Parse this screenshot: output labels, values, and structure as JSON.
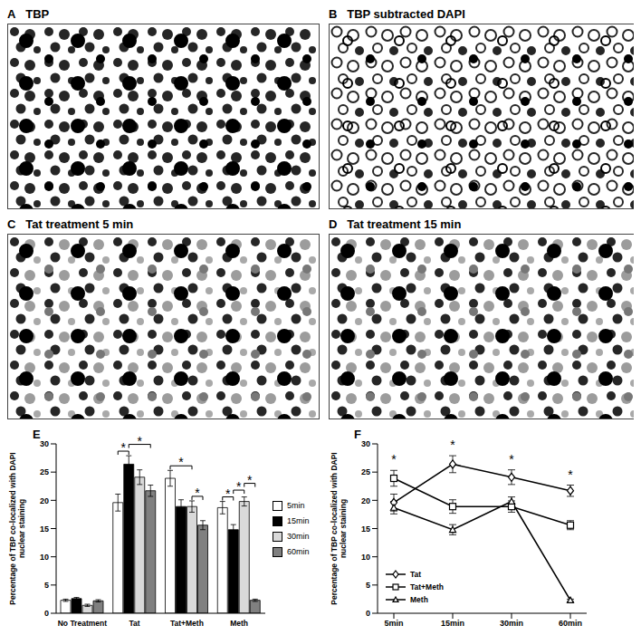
{
  "image_panels": [
    {
      "label": "A",
      "title": "TBP"
    },
    {
      "label": "B",
      "title": "TBP subtracted DAPI"
    },
    {
      "label": "C",
      "title": "Tat treatment 5 min"
    },
    {
      "label": "D",
      "title": "Tat treatment 15 min"
    }
  ],
  "chart_data": [
    {
      "type": "bar",
      "label": "E",
      "y_label": "Percentage of TBP co-localized with DAPI nuclear staining",
      "categories": [
        "No Treatment",
        "Tat",
        "Tat+Meth",
        "Meth"
      ],
      "series": [
        {
          "name": "5min",
          "color": "#ffffff",
          "values": [
            2.3,
            19.6,
            23.9,
            18.7
          ],
          "errors": [
            0.2,
            1.5,
            1.4,
            1.1
          ]
        },
        {
          "name": "15min",
          "color": "#000000",
          "values": [
            2.6,
            26.4,
            18.9,
            14.8
          ],
          "errors": [
            0.2,
            1.5,
            1.2,
            0.9
          ]
        },
        {
          "name": "30min",
          "color": "#d9d9d9",
          "values": [
            1.4,
            24.1,
            18.9,
            19.8
          ],
          "errors": [
            0.2,
            1.3,
            1.0,
            0.8
          ]
        },
        {
          "name": "60min",
          "color": "#808080",
          "values": [
            2.2,
            21.7,
            15.6,
            2.3
          ],
          "errors": [
            0.2,
            1.0,
            0.8,
            0.2
          ]
        }
      ],
      "ylim": [
        0,
        30
      ],
      "yticks": [
        0,
        5,
        10,
        15,
        20,
        25,
        30
      ],
      "grid": false,
      "legend": "right",
      "significance": [
        {
          "category": "Tat",
          "from": "5min",
          "to": "15min",
          "text": "*"
        },
        {
          "category": "Tat",
          "from": "15min",
          "to": "60min",
          "text": "*"
        },
        {
          "category": "Tat+Meth",
          "from": "30min",
          "to": "60min",
          "text": "*"
        },
        {
          "category": "Tat+Meth",
          "from": "5min",
          "to": "30min",
          "text": "*"
        },
        {
          "category": "Meth",
          "from": "5min",
          "to": "15min",
          "text": "*"
        },
        {
          "category": "Meth",
          "from": "15min",
          "to": "30min",
          "text": "*"
        },
        {
          "category": "Meth",
          "from": "30min",
          "to": "60min",
          "text": "*"
        }
      ]
    },
    {
      "type": "line",
      "label": "F",
      "y_label": "Percentage of TBP co-localized with DAPI nuclear staining",
      "categories": [
        "5min",
        "15min",
        "30min",
        "60min"
      ],
      "series": [
        {
          "name": "Tat",
          "color": "#000000",
          "marker": "diamond",
          "values": [
            19.6,
            26.4,
            24.1,
            21.7
          ],
          "errors": [
            1.5,
            1.5,
            1.3,
            1.0
          ]
        },
        {
          "name": "Tat+Meth",
          "color": "#000000",
          "marker": "square",
          "values": [
            23.9,
            18.9,
            18.9,
            15.6
          ],
          "errors": [
            1.4,
            1.2,
            1.0,
            0.8
          ]
        },
        {
          "name": "Meth",
          "color": "#000000",
          "marker": "triangle",
          "values": [
            18.7,
            14.8,
            19.8,
            2.3
          ],
          "errors": [
            1.1,
            0.9,
            0.8,
            0.2
          ]
        }
      ],
      "ylim": [
        0,
        30
      ],
      "yticks": [
        0,
        5,
        10,
        15,
        20,
        25,
        30
      ],
      "grid": false,
      "legend": "lower left",
      "significance": [
        {
          "x": "5min",
          "text": "*"
        },
        {
          "x": "15min",
          "text": "*"
        },
        {
          "x": "30min",
          "text": "*"
        },
        {
          "x": "60min",
          "text": "*"
        }
      ]
    }
  ]
}
